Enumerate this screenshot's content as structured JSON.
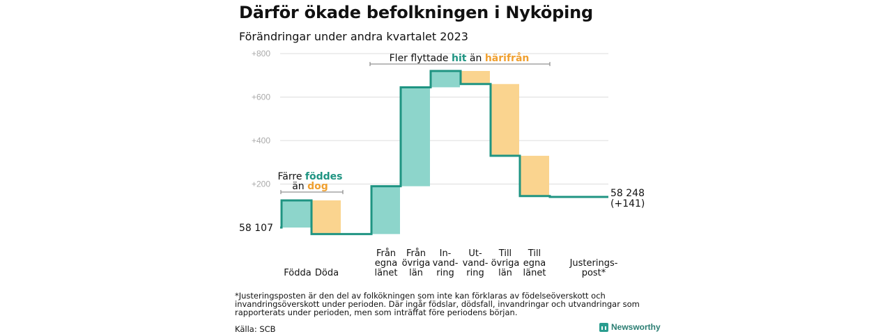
{
  "title": "Därför ökade befolkningen i Nyköping",
  "subtitle": "Förändringar under andra kvartalet 2023",
  "chart_data": {
    "type": "waterfall",
    "start": {
      "label": "58  107",
      "value": 0
    },
    "end": {
      "label": "58 248",
      "sublabel": "(+141)",
      "value": 141
    },
    "y_ticks": [
      "+200",
      "+400",
      "+600",
      "+800"
    ],
    "y_tick_values": [
      200,
      400,
      600,
      800
    ],
    "ylim": [
      -60,
      800
    ],
    "grid": true,
    "steps": [
      {
        "label": [
          "Födda"
        ],
        "from": 0,
        "to": 125,
        "kind": "in"
      },
      {
        "label": [
          "Döda"
        ],
        "from": 125,
        "to": -30,
        "kind": "out"
      },
      {
        "label": [
          "Från",
          "egna",
          "länet"
        ],
        "from": -30,
        "to": 190,
        "kind": "in"
      },
      {
        "label": [
          "Från",
          "övriga",
          "län"
        ],
        "from": 190,
        "to": 645,
        "kind": "in"
      },
      {
        "label": [
          "In-",
          "vand-",
          "ring"
        ],
        "from": 645,
        "to": 720,
        "kind": "in"
      },
      {
        "label": [
          "Ut-",
          "vand-",
          "ring"
        ],
        "from": 720,
        "to": 660,
        "kind": "out"
      },
      {
        "label": [
          "Till",
          "övriga",
          "län"
        ],
        "from": 660,
        "to": 330,
        "kind": "out"
      },
      {
        "label": [
          "Till",
          "egna",
          "länet"
        ],
        "from": 330,
        "to": 145,
        "kind": "out"
      },
      {
        "label": [
          "Justerings-",
          "post*"
        ],
        "from": 145,
        "to": 141,
        "kind": "out"
      }
    ],
    "annotations": [
      {
        "parts": [
          "Färre ",
          "föddes"
        ],
        "line2": [
          "än ",
          "dog"
        ]
      },
      {
        "parts": [
          "Fler flyttade ",
          "hit",
          " än ",
          "härifrån"
        ]
      }
    ],
    "colors": {
      "in": "#8dd5cb",
      "out": "#fad48f",
      "line": "#1f9482",
      "teal_text": "#1f9482",
      "orange_text": "#f0a030",
      "grid": "#dddddd"
    }
  },
  "footnote": "*Justeringsposten är den del av folkökningen som inte kan förklaras av födelseöverskott och invandringsöverskott under perioden. Där ingår födslar, dödsfall, invandringar och utvandringar som rapporterats under perioden, men som inträffat före periodens början.",
  "source": "Källa: SCB",
  "brand": "Newsworthy"
}
